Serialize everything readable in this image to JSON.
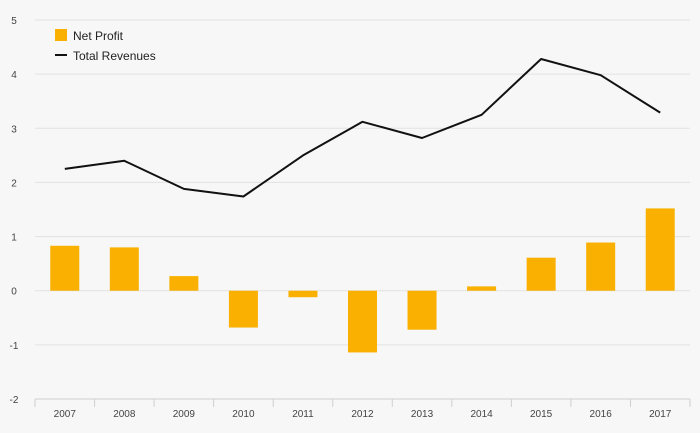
{
  "chart_data": {
    "type": "bar",
    "title": "",
    "xlabel": "",
    "ylabel": "",
    "categories": [
      "2007",
      "2008",
      "2009",
      "2010",
      "2011",
      "2012",
      "2013",
      "2014",
      "2015",
      "2016",
      "2017"
    ],
    "ylim": [
      -2,
      5
    ],
    "yticks": [
      5,
      4,
      3,
      2,
      1,
      0,
      -1,
      -2
    ],
    "grid": true,
    "legend_position": "top-left",
    "series": [
      {
        "name": "Net Profit",
        "type": "bar",
        "color": "#f9b000",
        "values": [
          0.83,
          0.8,
          0.27,
          -0.68,
          -0.12,
          -1.14,
          -0.72,
          0.08,
          0.61,
          0.89,
          1.52
        ]
      },
      {
        "name": "Total Revenues",
        "type": "line",
        "color": "#111111",
        "values": [
          2.25,
          2.4,
          1.88,
          1.74,
          2.5,
          3.12,
          2.82,
          3.25,
          4.28,
          3.98,
          3.29
        ]
      }
    ]
  }
}
